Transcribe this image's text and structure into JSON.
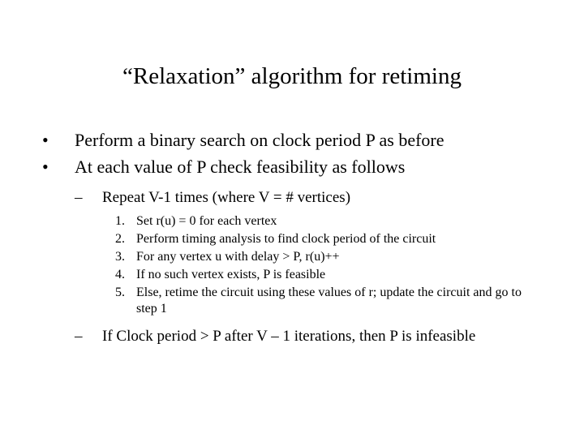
{
  "title": "“Relaxation” algorithm for retiming",
  "bullets": {
    "b1": "Perform a binary search on clock period P as before",
    "b2": "At each value of P check feasibility as follows",
    "sub1": "Repeat V-1 times (where V = # vertices)",
    "n1": "1.",
    "n2": "2.",
    "n3": "3.",
    "n4": "4.",
    "n5": "5.",
    "s1": "Set r(u) = 0 for each vertex",
    "s2": "Perform timing analysis to find clock period of the circuit",
    "s3": "For any vertex u with delay > P, r(u)++",
    "s4": "If no such vertex exists, P is feasible",
    "s5": "Else, retime the circuit using these values of r; update the circuit and go to step 1",
    "sub2": "If Clock period > P after V – 1 iterations, then P is infeasible"
  },
  "dot": "•",
  "dash": "–"
}
